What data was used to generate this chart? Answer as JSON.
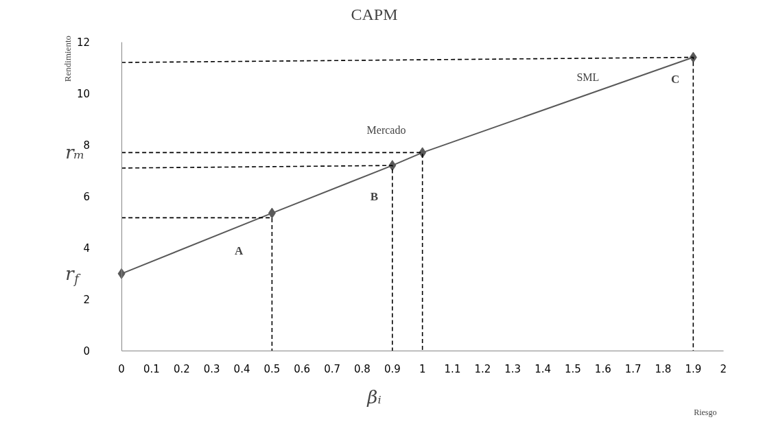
{
  "chart_data": {
    "type": "line",
    "title": "CAPM",
    "xlabel": "βᵢ",
    "ylabel": "Rendimiento",
    "xlim": [
      0,
      2
    ],
    "ylim": [
      0,
      12
    ],
    "xticks": [
      0,
      0.1,
      0.2,
      0.3,
      0.4,
      0.5,
      0.6,
      0.7,
      0.8,
      0.9,
      1,
      1.1,
      1.2,
      1.3,
      1.4,
      1.5,
      1.6,
      1.7,
      1.8,
      1.9,
      2
    ],
    "yticks": [
      0,
      2,
      4,
      6,
      8,
      10,
      12
    ],
    "grid": false,
    "series": [
      {
        "color": "#595959",
        "marker": "diamond",
        "line_style": "solid",
        "x": [
          0,
          0.5,
          0.9,
          1,
          1.9
        ],
        "values": [
          3,
          5.35,
          7.2,
          7.7,
          11.4
        ]
      },
      {
        "color": "#000000",
        "marker": "none",
        "line_style": "dashed",
        "x": [
          0,
          0.5,
          0.5
        ],
        "values": [
          5.17,
          5.17,
          0
        ]
      },
      {
        "color": "#000000",
        "marker": "none",
        "line_style": "dashed",
        "x": [
          0,
          0.9,
          0.9
        ],
        "values": [
          7.1,
          7.2,
          0
        ]
      },
      {
        "color": "#000000",
        "marker": "none",
        "line_style": "dashed",
        "x": [
          0,
          1,
          1
        ],
        "values": [
          7.7,
          7.7,
          0
        ]
      },
      {
        "color": "#000000",
        "marker": "none",
        "line_style": "dashed",
        "x": [
          0,
          1.9,
          1.9
        ],
        "values": [
          11.2,
          11.4,
          0
        ]
      }
    ],
    "annotations": [
      "A",
      "B",
      "C",
      "Mercado",
      "SML",
      {
        "text": "rₘ",
        "x": 0,
        "y": 7.7
      },
      {
        "text": "r$_{f}$",
        "x": 0,
        "y": 3
      },
      "Riesgo"
    ]
  }
}
